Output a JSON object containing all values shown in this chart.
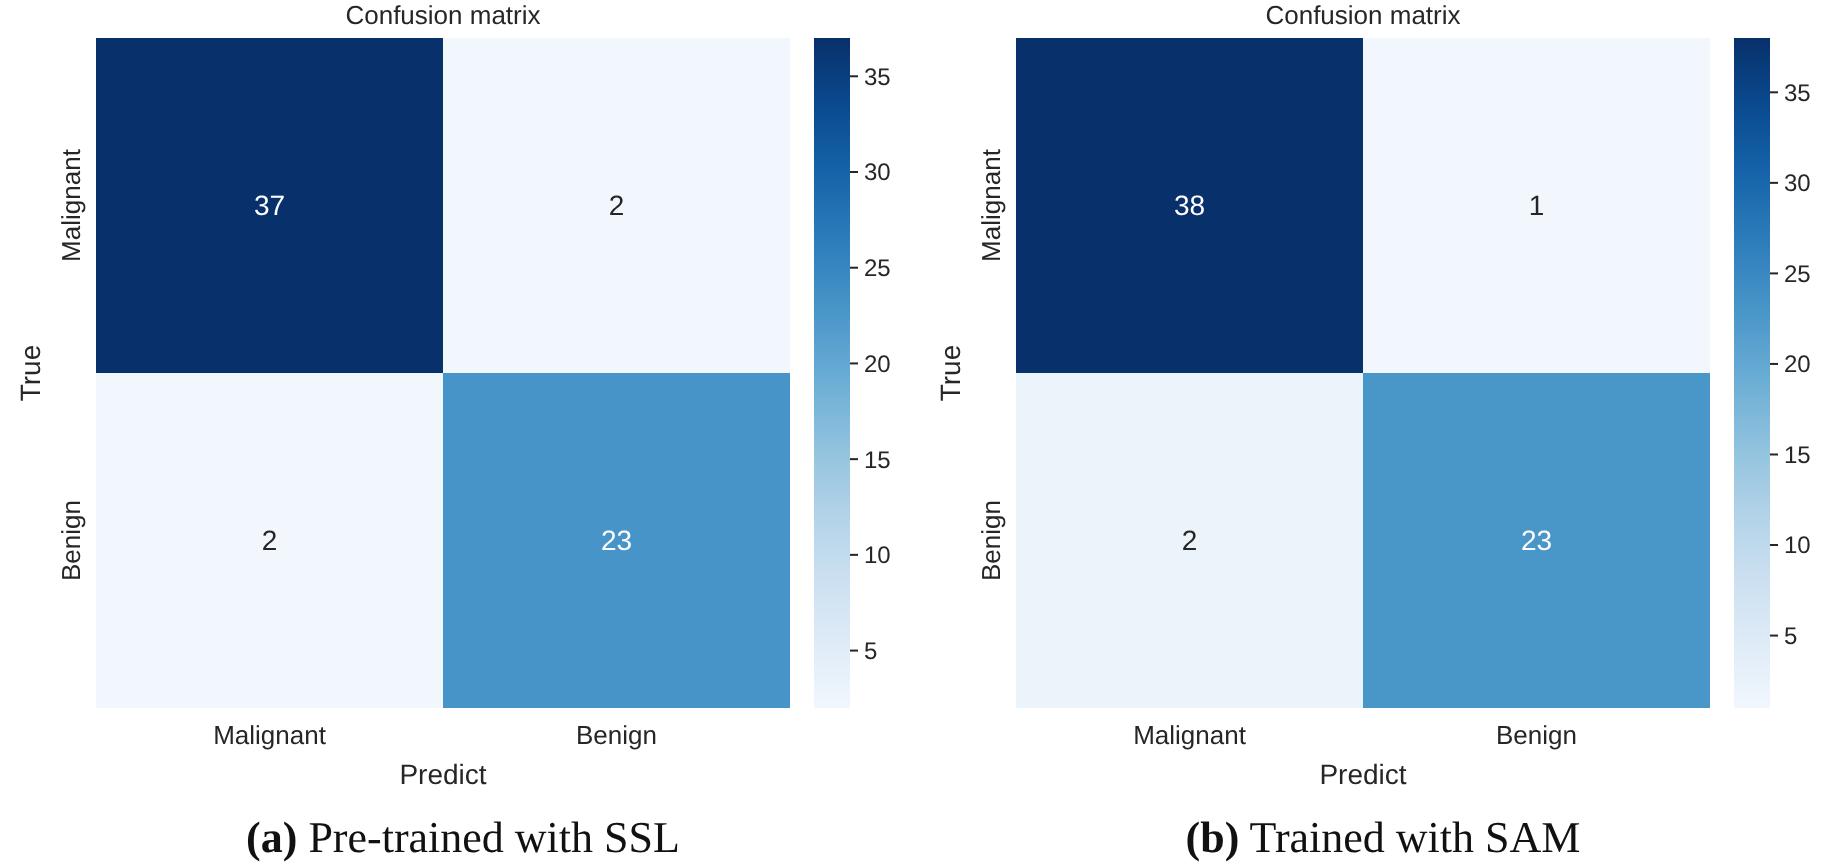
{
  "chart_data": [
    {
      "type": "heatmap",
      "title": "Confusion matrix",
      "xlabel": "Predict",
      "ylabel": "True",
      "categories": [
        "Malignant",
        "Benign"
      ],
      "y_categories": [
        "Malignant",
        "Benign"
      ],
      "cells": [
        [
          37,
          2
        ],
        [
          2,
          23
        ]
      ],
      "clim": [
        2,
        37
      ],
      "cticks": [
        5,
        10,
        15,
        20,
        25,
        30,
        35
      ],
      "data_labels": true,
      "annotations": [
        "(a) Pre-trained with SSL"
      ]
    },
    {
      "type": "heatmap",
      "title": "Confusion matrix",
      "xlabel": "Predict",
      "ylabel": "True",
      "categories": [
        "Malignant",
        "Benign"
      ],
      "y_categories": [
        "Malignant",
        "Benign"
      ],
      "cells": [
        [
          38,
          1
        ],
        [
          2,
          23
        ]
      ],
      "clim": [
        1,
        38
      ],
      "cticks": [
        5,
        10,
        15,
        20,
        25,
        30,
        35
      ],
      "data_labels": true,
      "annotations": [
        "(b) Trained with SAM"
      ]
    }
  ]
}
